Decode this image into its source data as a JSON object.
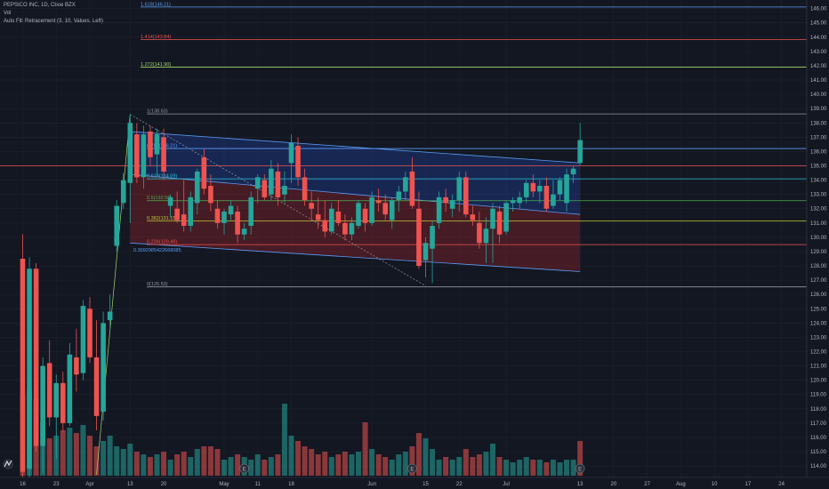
{
  "header": {
    "symbol_line": "PEPSICO INC, 1D, Cboe BZX",
    "volume_label": "Vol",
    "indicator_label": "Auto Fib Retracement (3, 10, Values, Left)"
  },
  "colors": {
    "background": "#131722",
    "up": "#26a69a",
    "down": "#ef5350",
    "channel_upper_fill": "#2962ff",
    "channel_lower_fill": "#b2262b",
    "channel_line": "#5b9cf6",
    "axis_text": "#b2b5be",
    "grid": "#1e222d"
  },
  "chart_data": {
    "type": "candlestick",
    "ylim": [
      113.2,
      146.6
    ],
    "y_axis_ticks": [
      "114.00",
      "115.00",
      "116.00",
      "117.00",
      "118.00",
      "119.00",
      "120.00",
      "121.00",
      "122.00",
      "123.00",
      "124.00",
      "125.00",
      "126.00",
      "127.00",
      "128.00",
      "129.00",
      "130.00",
      "131.00",
      "132.00",
      "133.00",
      "134.00",
      "135.00",
      "136.00",
      "137.00",
      "138.00",
      "139.00",
      "140.00",
      "141.00",
      "142.00",
      "143.00",
      "144.00",
      "145.00",
      "146.00"
    ],
    "x_axis_labels": [
      {
        "label": "16",
        "bar": 0
      },
      {
        "label": "23",
        "bar": 5
      },
      {
        "label": "Apr",
        "bar": 10
      },
      {
        "label": "13",
        "bar": 16
      },
      {
        "label": "20",
        "bar": 21
      },
      {
        "label": "May",
        "bar": 30
      },
      {
        "label": "11",
        "bar": 35
      },
      {
        "label": "18",
        "bar": 40
      },
      {
        "label": "Jun",
        "bar": 52
      },
      {
        "label": "15",
        "bar": 60
      },
      {
        "label": "22",
        "bar": 65
      },
      {
        "label": "Jul",
        "bar": 72
      },
      {
        "label": "13",
        "bar": 83
      },
      {
        "label": "20",
        "bar": 88
      },
      {
        "label": "27",
        "bar": 93
      },
      {
        "label": "Aug",
        "bar": 98
      },
      {
        "label": "10",
        "bar": 103
      },
      {
        "label": "17",
        "bar": 108
      },
      {
        "label": "24",
        "bar": 113
      }
    ],
    "candles": [
      {
        "o": 128.5,
        "h": 130.2,
        "l": 113.2,
        "c": 113.6
      },
      {
        "o": 113.8,
        "h": 128.6,
        "l": 113.2,
        "c": 127.8
      },
      {
        "o": 127.8,
        "h": 128.2,
        "l": 115.0,
        "c": 115.4
      },
      {
        "o": 115.4,
        "h": 121.6,
        "l": 113.5,
        "c": 121.0
      },
      {
        "o": 121.2,
        "h": 122.8,
        "l": 116.8,
        "c": 117.4
      },
      {
        "o": 117.4,
        "h": 120.4,
        "l": 114.5,
        "c": 119.8
      },
      {
        "o": 119.8,
        "h": 120.6,
        "l": 116.4,
        "c": 117.0
      },
      {
        "o": 117.0,
        "h": 122.6,
        "l": 116.8,
        "c": 121.8
      },
      {
        "o": 121.6,
        "h": 123.6,
        "l": 119.2,
        "c": 120.4
      },
      {
        "o": 120.5,
        "h": 125.6,
        "l": 120.0,
        "c": 125.2
      },
      {
        "o": 125.0,
        "h": 125.8,
        "l": 121.2,
        "c": 121.6
      },
      {
        "o": 121.6,
        "h": 124.2,
        "l": 116.5,
        "c": 117.5
      },
      {
        "o": 117.8,
        "h": 124.8,
        "l": 117.2,
        "c": 124.0
      },
      {
        "o": 124.2,
        "h": 126.0,
        "l": 123.5,
        "c": 124.8
      },
      {
        "o": 129.4,
        "h": 132.6,
        "l": 129.0,
        "c": 132.2
      },
      {
        "o": 132.4,
        "h": 134.5,
        "l": 132.0,
        "c": 134.0
      },
      {
        "o": 133.8,
        "h": 138.6,
        "l": 131.0,
        "c": 138.0
      },
      {
        "o": 137.2,
        "h": 138.0,
        "l": 133.8,
        "c": 134.2
      },
      {
        "o": 134.2,
        "h": 137.8,
        "l": 133.4,
        "c": 137.2
      },
      {
        "o": 137.4,
        "h": 137.8,
        "l": 135.0,
        "c": 135.6
      },
      {
        "o": 135.8,
        "h": 137.6,
        "l": 134.2,
        "c": 137.2
      },
      {
        "o": 137.0,
        "h": 137.6,
        "l": 134.0,
        "c": 134.6
      },
      {
        "o": 132.2,
        "h": 133.0,
        "l": 131.4,
        "c": 132.8
      },
      {
        "o": 132.0,
        "h": 133.2,
        "l": 131.0,
        "c": 131.2
      },
      {
        "o": 131.6,
        "h": 134.0,
        "l": 130.4,
        "c": 130.8
      },
      {
        "o": 130.8,
        "h": 133.2,
        "l": 130.4,
        "c": 132.8
      },
      {
        "o": 132.4,
        "h": 134.8,
        "l": 131.6,
        "c": 134.6
      },
      {
        "o": 135.6,
        "h": 136.2,
        "l": 133.0,
        "c": 133.4
      },
      {
        "o": 133.6,
        "h": 134.4,
        "l": 131.8,
        "c": 132.4
      },
      {
        "o": 132.0,
        "h": 132.6,
        "l": 130.6,
        "c": 131.0
      },
      {
        "o": 131.0,
        "h": 132.0,
        "l": 130.2,
        "c": 131.8
      },
      {
        "o": 131.6,
        "h": 132.6,
        "l": 131.2,
        "c": 132.2
      },
      {
        "o": 131.8,
        "h": 132.2,
        "l": 129.6,
        "c": 130.2
      },
      {
        "o": 130.2,
        "h": 131.0,
        "l": 129.8,
        "c": 130.6
      },
      {
        "o": 130.8,
        "h": 133.2,
        "l": 130.2,
        "c": 132.8
      },
      {
        "o": 133.4,
        "h": 134.4,
        "l": 132.4,
        "c": 134.2
      },
      {
        "o": 134.0,
        "h": 134.4,
        "l": 132.6,
        "c": 132.8
      },
      {
        "o": 133.0,
        "h": 135.4,
        "l": 132.6,
        "c": 134.8
      },
      {
        "o": 134.6,
        "h": 135.2,
        "l": 132.2,
        "c": 132.8
      },
      {
        "o": 133.0,
        "h": 134.6,
        "l": 132.4,
        "c": 133.6
      },
      {
        "o": 135.2,
        "h": 137.2,
        "l": 133.8,
        "c": 136.6
      },
      {
        "o": 136.4,
        "h": 137.0,
        "l": 133.6,
        "c": 134.2
      },
      {
        "o": 134.2,
        "h": 134.8,
        "l": 132.2,
        "c": 132.6
      },
      {
        "o": 132.4,
        "h": 133.2,
        "l": 131.2,
        "c": 132.0
      },
      {
        "o": 131.6,
        "h": 132.8,
        "l": 130.6,
        "c": 131.2
      },
      {
        "o": 131.2,
        "h": 132.6,
        "l": 130.0,
        "c": 130.4
      },
      {
        "o": 130.4,
        "h": 132.4,
        "l": 130.2,
        "c": 132.0
      },
      {
        "o": 131.8,
        "h": 132.6,
        "l": 130.8,
        "c": 131.0
      },
      {
        "o": 131.0,
        "h": 131.6,
        "l": 129.8,
        "c": 130.2
      },
      {
        "o": 130.2,
        "h": 131.4,
        "l": 129.8,
        "c": 131.0
      },
      {
        "o": 130.8,
        "h": 132.6,
        "l": 130.6,
        "c": 132.4
      },
      {
        "o": 132.0,
        "h": 132.4,
        "l": 130.4,
        "c": 131.0
      },
      {
        "o": 131.0,
        "h": 133.2,
        "l": 130.8,
        "c": 132.8
      },
      {
        "o": 132.6,
        "h": 133.4,
        "l": 131.8,
        "c": 132.4
      },
      {
        "o": 132.4,
        "h": 133.0,
        "l": 131.2,
        "c": 131.6
      },
      {
        "o": 131.2,
        "h": 132.8,
        "l": 130.6,
        "c": 132.6
      },
      {
        "o": 132.6,
        "h": 133.6,
        "l": 131.8,
        "c": 133.2
      },
      {
        "o": 133.2,
        "h": 134.6,
        "l": 132.6,
        "c": 134.2
      },
      {
        "o": 134.6,
        "h": 135.6,
        "l": 132.0,
        "c": 132.2
      },
      {
        "o": 132.0,
        "h": 133.2,
        "l": 127.8,
        "c": 128.0
      },
      {
        "o": 128.4,
        "h": 130.0,
        "l": 127.2,
        "c": 129.6
      },
      {
        "o": 129.2,
        "h": 131.2,
        "l": 126.8,
        "c": 130.8
      },
      {
        "o": 131.0,
        "h": 133.2,
        "l": 130.6,
        "c": 132.8
      },
      {
        "o": 132.8,
        "h": 133.4,
        "l": 131.8,
        "c": 132.4
      },
      {
        "o": 132.0,
        "h": 133.0,
        "l": 131.4,
        "c": 132.6
      },
      {
        "o": 132.6,
        "h": 134.6,
        "l": 131.8,
        "c": 134.2
      },
      {
        "o": 134.2,
        "h": 134.6,
        "l": 131.4,
        "c": 131.6
      },
      {
        "o": 131.6,
        "h": 132.2,
        "l": 130.8,
        "c": 131.2
      },
      {
        "o": 131.0,
        "h": 131.8,
        "l": 129.2,
        "c": 129.6
      },
      {
        "o": 129.6,
        "h": 131.4,
        "l": 128.2,
        "c": 130.6
      },
      {
        "o": 130.6,
        "h": 132.4,
        "l": 128.2,
        "c": 132.0
      },
      {
        "o": 131.8,
        "h": 132.2,
        "l": 129.6,
        "c": 130.2
      },
      {
        "o": 130.4,
        "h": 132.6,
        "l": 130.2,
        "c": 132.4
      },
      {
        "o": 132.4,
        "h": 132.8,
        "l": 131.8,
        "c": 132.6
      },
      {
        "o": 132.4,
        "h": 133.2,
        "l": 132.0,
        "c": 132.8
      },
      {
        "o": 132.8,
        "h": 134.0,
        "l": 132.4,
        "c": 133.8
      },
      {
        "o": 133.8,
        "h": 134.4,
        "l": 132.8,
        "c": 133.2
      },
      {
        "o": 133.2,
        "h": 134.0,
        "l": 132.4,
        "c": 133.6
      },
      {
        "o": 133.6,
        "h": 134.2,
        "l": 131.8,
        "c": 132.0
      },
      {
        "o": 132.2,
        "h": 134.0,
        "l": 132.0,
        "c": 133.0
      },
      {
        "o": 133.0,
        "h": 134.2,
        "l": 132.6,
        "c": 134.0
      },
      {
        "o": 132.4,
        "h": 134.8,
        "l": 131.8,
        "c": 134.4
      },
      {
        "o": 134.4,
        "h": 135.0,
        "l": 133.8,
        "c": 134.8
      },
      {
        "o": 135.2,
        "h": 138.0,
        "l": 135.0,
        "c": 136.8
      }
    ],
    "volume": [
      {
        "v": 0.6,
        "up": false
      },
      {
        "v": 0.65,
        "up": true
      },
      {
        "v": 0.58,
        "up": false
      },
      {
        "v": 0.4,
        "up": true
      },
      {
        "v": 0.28,
        "up": false
      },
      {
        "v": 0.3,
        "up": true
      },
      {
        "v": 0.34,
        "up": false
      },
      {
        "v": 0.36,
        "up": true
      },
      {
        "v": 0.32,
        "up": false
      },
      {
        "v": 0.38,
        "up": true
      },
      {
        "v": 0.3,
        "up": false
      },
      {
        "v": 0.22,
        "up": false
      },
      {
        "v": 0.26,
        "up": true
      },
      {
        "v": 0.3,
        "up": true
      },
      {
        "v": 0.22,
        "up": true
      },
      {
        "v": 0.2,
        "up": true
      },
      {
        "v": 0.24,
        "up": true
      },
      {
        "v": 0.18,
        "up": false
      },
      {
        "v": 0.16,
        "up": true
      },
      {
        "v": 0.14,
        "up": false
      },
      {
        "v": 0.16,
        "up": true
      },
      {
        "v": 0.18,
        "up": false
      },
      {
        "v": 0.12,
        "up": true
      },
      {
        "v": 0.16,
        "up": false
      },
      {
        "v": 0.18,
        "up": false
      },
      {
        "v": 0.14,
        "up": true
      },
      {
        "v": 0.2,
        "up": true
      },
      {
        "v": 0.22,
        "up": false
      },
      {
        "v": 0.22,
        "up": false
      },
      {
        "v": 0.2,
        "up": false
      },
      {
        "v": 0.12,
        "up": true
      },
      {
        "v": 0.14,
        "up": true
      },
      {
        "v": 0.16,
        "up": false
      },
      {
        "v": 0.14,
        "up": true
      },
      {
        "v": 0.12,
        "up": true
      },
      {
        "v": 0.16,
        "up": true
      },
      {
        "v": 0.12,
        "up": false
      },
      {
        "v": 0.14,
        "up": true
      },
      {
        "v": 0.16,
        "up": false
      },
      {
        "v": 0.54,
        "up": true
      },
      {
        "v": 0.3,
        "up": true
      },
      {
        "v": 0.26,
        "up": false
      },
      {
        "v": 0.22,
        "up": false
      },
      {
        "v": 0.2,
        "up": false
      },
      {
        "v": 0.16,
        "up": false
      },
      {
        "v": 0.18,
        "up": false
      },
      {
        "v": 0.14,
        "up": true
      },
      {
        "v": 0.16,
        "up": false
      },
      {
        "v": 0.18,
        "up": false
      },
      {
        "v": 0.16,
        "up": true
      },
      {
        "v": 0.18,
        "up": true
      },
      {
        "v": 0.4,
        "up": false
      },
      {
        "v": 0.2,
        "up": true
      },
      {
        "v": 0.16,
        "up": false
      },
      {
        "v": 0.14,
        "up": false
      },
      {
        "v": 0.12,
        "up": true
      },
      {
        "v": 0.16,
        "up": true
      },
      {
        "v": 0.18,
        "up": true
      },
      {
        "v": 0.22,
        "up": false
      },
      {
        "v": 0.32,
        "up": false
      },
      {
        "v": 0.28,
        "up": true
      },
      {
        "v": 0.2,
        "up": true
      },
      {
        "v": 0.12,
        "up": true
      },
      {
        "v": 0.14,
        "up": false
      },
      {
        "v": 0.12,
        "up": true
      },
      {
        "v": 0.14,
        "up": true
      },
      {
        "v": 0.2,
        "up": false
      },
      {
        "v": 0.14,
        "up": false
      },
      {
        "v": 0.16,
        "up": false
      },
      {
        "v": 0.18,
        "up": true
      },
      {
        "v": 0.24,
        "up": true
      },
      {
        "v": 0.14,
        "up": false
      },
      {
        "v": 0.12,
        "up": true
      },
      {
        "v": 0.1,
        "up": true
      },
      {
        "v": 0.12,
        "up": true
      },
      {
        "v": 0.14,
        "up": true
      },
      {
        "v": 0.12,
        "up": false
      },
      {
        "v": 0.12,
        "up": true
      },
      {
        "v": 0.1,
        "up": false
      },
      {
        "v": 0.12,
        "up": true
      },
      {
        "v": 0.1,
        "up": true
      },
      {
        "v": 0.12,
        "up": true
      },
      {
        "v": 0.12,
        "up": true
      },
      {
        "v": 0.26,
        "up": false
      }
    ],
    "fib_levels": [
      {
        "label": "1.618(146.11)",
        "price": 146.11,
        "color": "#5b9cf6"
      },
      {
        "label": "1.414(143.84)",
        "price": 143.84,
        "color": "#ef5350"
      },
      {
        "label": "1.272(141.90)",
        "price": 141.9,
        "color": "#a5d86d"
      },
      {
        "label": "1(138.63)",
        "price": 138.63,
        "color": "#9598a1"
      },
      {
        "label": "0.786(136.21)",
        "price": 136.21,
        "color": "#5b9cf6"
      },
      {
        "label": "0.618(134.09)",
        "price": 134.09,
        "color": "#26c6da"
      },
      {
        "label": "0.5(132.56)",
        "price": 132.56,
        "color": "#4caf50"
      },
      {
        "label": "0.382(131.15)",
        "price": 131.15,
        "color": "#c0ca33"
      },
      {
        "label": "0.236(129.49)",
        "price": 129.49,
        "color": "#ef5350"
      },
      {
        "label": "0(126.53)",
        "price": 126.53,
        "color": "#9598a1"
      }
    ],
    "channel_mid_label": "0.3092985422668085",
    "channel": {
      "start_bar": 16,
      "end_bar": 83,
      "upper_start": 137.4,
      "upper_end": 135.2,
      "mid_start": 134.4,
      "mid_end": 131.6,
      "lower_start": 129.6,
      "lower_end": 127.6
    },
    "current_price_level": 135.0,
    "event_markers": [
      {
        "label": "E",
        "bar": 33
      },
      {
        "label": "E",
        "bar": 58
      },
      {
        "label": "E",
        "bar": 83
      }
    ]
  }
}
